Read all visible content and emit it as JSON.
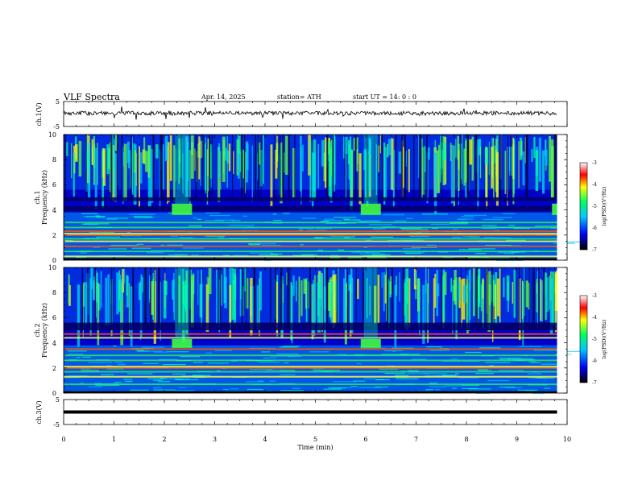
{
  "header": {
    "title": "VLF  Spectra",
    "date": "Apr. 14, 2025",
    "station": "station= ATH",
    "start_time": "start  UT  =   14: 0   : 0"
  },
  "colors": {
    "spectrogram_background": "#0000c8",
    "waveform": "#000000",
    "colormap": [
      "#000000",
      "#0000ff",
      "#00c8ff",
      "#00ff60",
      "#ffff00",
      "#ff0000",
      "#ffffff"
    ]
  },
  "chart_data": [
    {
      "type": "line",
      "name": "ch1-waveform",
      "ylabel": "ch.1(V)",
      "ylim": [
        -5,
        5
      ],
      "ytick_labels": [
        "5",
        "-5"
      ],
      "level_v": 0.3
    },
    {
      "type": "heatmap",
      "name": "ch1-spectrogram",
      "ylabel_channel": "ch.1",
      "ylabel": "Frequency  (kHz)",
      "ylim": [
        0,
        10
      ],
      "ytick_labels": [
        "0",
        "2",
        "4",
        "6",
        "8",
        "10"
      ],
      "colorbar": {
        "label": "log(PSD)(V²/Hz)",
        "range": [
          -7,
          -3
        ],
        "tick_labels": [
          "-3",
          "-4",
          "-5",
          "-6",
          "-7"
        ]
      },
      "bright_bands_khz": [
        0.05,
        0.3,
        1.1,
        1.5,
        2.0,
        2.1,
        2.3
      ],
      "dark_bands_khz": [
        [
          3.9,
          4.3
        ],
        [
          4.7,
          5.0
        ]
      ],
      "bursts": [
        {
          "t_min": [
            2.15,
            2.55
          ],
          "f_khz": [
            3.6,
            4.5
          ]
        },
        {
          "t_min": [
            5.9,
            6.3
          ],
          "f_khz": [
            3.6,
            4.5
          ]
        },
        {
          "t_min": [
            9.7,
            9.8
          ],
          "f_khz": [
            3.6,
            4.5
          ]
        }
      ]
    },
    {
      "type": "heatmap",
      "name": "ch2-spectrogram",
      "ylabel_channel": "ch.2",
      "ylabel": "Frequency  (kHz)",
      "ylim": [
        0,
        10
      ],
      "ytick_labels": [
        "0",
        "2",
        "4",
        "6",
        "8",
        "10"
      ],
      "colorbar": {
        "label": "log(PSD)(V²/Hz)",
        "range": [
          -7,
          -3
        ],
        "tick_labels": [
          "-3",
          "-4",
          "-5",
          "-6",
          "-7"
        ]
      },
      "bright_bands_khz": [
        0.05,
        1.3,
        2.0,
        2.1,
        3.5,
        4.4,
        4.7
      ],
      "dark_bands_khz": [
        [
          5.0,
          5.6
        ]
      ],
      "bursts": [
        {
          "t_min": [
            2.15,
            2.55
          ],
          "f_khz": [
            3.6,
            4.3
          ]
        },
        {
          "t_min": [
            5.9,
            6.3
          ],
          "f_khz": [
            3.6,
            4.3
          ]
        }
      ]
    },
    {
      "type": "line",
      "name": "ch3-waveform",
      "ylabel": "ch.3(V)",
      "ylim": [
        -5,
        5
      ],
      "ytick_labels": [
        "5",
        "-5"
      ],
      "level_v": 0.0
    }
  ],
  "xaxis": {
    "label": "Time  (min)",
    "range": [
      0,
      10
    ],
    "data_end_min": 9.8,
    "tick_labels": [
      "0",
      "1",
      "2",
      "3",
      "4",
      "5",
      "6",
      "7",
      "8",
      "9",
      "10"
    ]
  }
}
